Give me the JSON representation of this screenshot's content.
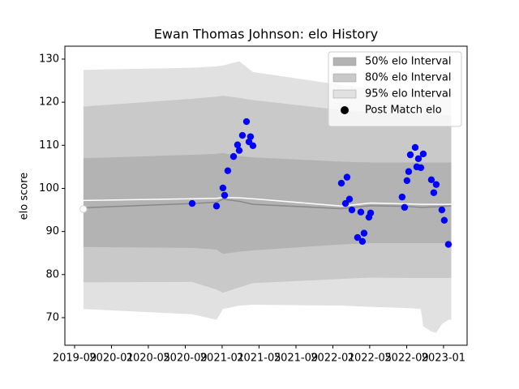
{
  "chart_data": {
    "type": "scatter",
    "title": "Ewan Thomas Johnson: elo History",
    "ylabel": "elo score",
    "xlim": [
      2019.579,
      2023.213
    ],
    "ylim": [
      63.6,
      133
    ],
    "xticks": [
      {
        "value": 2019.667,
        "label": "2019-09"
      },
      {
        "value": 2020.0,
        "label": "2020-01"
      },
      {
        "value": 2020.333,
        "label": "2020-05"
      },
      {
        "value": 2020.667,
        "label": "2020-09"
      },
      {
        "value": 2021.0,
        "label": "2021-01"
      },
      {
        "value": 2021.333,
        "label": "2021-05"
      },
      {
        "value": 2021.667,
        "label": "2021-09"
      },
      {
        "value": 2022.0,
        "label": "2022-01"
      },
      {
        "value": 2022.333,
        "label": "2022-05"
      },
      {
        "value": 2022.667,
        "label": "2022-09"
      },
      {
        "value": 2023.0,
        "label": "2023-01"
      }
    ],
    "yticks": [
      70,
      80,
      90,
      100,
      110,
      120,
      130
    ],
    "legend": "upper right",
    "band_x": [
      2019.747,
      2020.729,
      2020.949,
      2021.007,
      2021.154,
      2021.278,
      2022.077,
      2022.341,
      2022.685,
      2022.795,
      2022.817,
      2022.89,
      2022.934,
      2022.985,
      2023.044,
      2023.07
    ],
    "bands": [
      {
        "name": "95% elo Interval",
        "color": "#e1e1e1",
        "upper": [
          127.5,
          128.0,
          128.3,
          128.5,
          129.5,
          127.0,
          124.0,
          123.2,
          122.5,
          122.3,
          122.3,
          122.2,
          122.2,
          122.1,
          122.0,
          122.0
        ],
        "lower": [
          72.0,
          70.8,
          69.5,
          72.0,
          72.8,
          73.0,
          72.8,
          72.5,
          72.2,
          72.0,
          68.0,
          66.8,
          66.5,
          68.5,
          69.5,
          69.5
        ]
      },
      {
        "name": "80% elo Interval",
        "color": "#c9c9c9",
        "upper": [
          119,
          120.8,
          121.3,
          121.5,
          121,
          120.5,
          118.2,
          117.8,
          117.4,
          117.2,
          117.2,
          117.1,
          117.1,
          117.0,
          117.0,
          117.0
        ],
        "lower": [
          78.2,
          78.3,
          76.5,
          75.8,
          77,
          78,
          79,
          79.3,
          79.2,
          79.2,
          79.2,
          79.2,
          79.2,
          79.2,
          79.2,
          79.2
        ]
      },
      {
        "name": "50% elo Interval",
        "color": "#b3b3b3",
        "upper": [
          107,
          107.8,
          108,
          108.2,
          107.5,
          107.2,
          106.2,
          106,
          106,
          106,
          106,
          106,
          106,
          106,
          106,
          106
        ],
        "lower": [
          86.4,
          86.2,
          85.8,
          84.8,
          85.3,
          85.6,
          87,
          87.3,
          87.3,
          87.3,
          87.3,
          87.3,
          87.3,
          87.3,
          87.3,
          87.3
        ]
      }
    ],
    "lines": [
      {
        "color": "#888888",
        "values": [
          95.5,
          96.5,
          96.8,
          97.5,
          97,
          96.3,
          95.3,
          96.0,
          95.8,
          95.6,
          95.6,
          95.7,
          95.7,
          95.8,
          95.9,
          96.0
        ]
      },
      {
        "color": "#ffffff",
        "values": [
          97.2,
          97.6,
          97.7,
          97.9,
          97.8,
          97.6,
          95.9,
          96.6,
          96.4,
          96.3,
          96.3,
          96.3,
          96.3,
          96.3,
          96.3,
          96.3
        ]
      }
    ],
    "series": [
      {
        "name": "Post Match elo",
        "color": "#0000ff",
        "legend_marker_color": "#000000",
        "first_point_color": "#ffffff",
        "x": [
          2019.747,
          2020.729,
          2020.949,
          2021.007,
          2021.022,
          2021.051,
          2021.103,
          2021.139,
          2021.154,
          2021.183,
          2021.22,
          2021.242,
          2021.256,
          2021.278,
          2022.077,
          2022.128,
          2022.15,
          2022.114,
          2022.172,
          2022.223,
          2022.253,
          2022.267,
          2022.282,
          2022.326,
          2022.341,
          2022.626,
          2022.648,
          2022.67,
          2022.685,
          2022.7,
          2022.744,
          2022.758,
          2022.773,
          2022.795,
          2022.817,
          2022.89,
          2022.912,
          2022.934,
          2022.985,
          2023.007,
          2023.044
        ],
        "values": [
          95.2,
          96.5,
          95.9,
          100.1,
          98.4,
          104.1,
          107.4,
          110.1,
          108.8,
          112.3,
          115.5,
          110.8,
          112.0,
          109.9,
          101.2,
          102.6,
          97.5,
          96.5,
          95.0,
          88.6,
          94.5,
          87.7,
          89.6,
          93.3,
          94.3,
          98.0,
          95.6,
          101.8,
          103.9,
          107.8,
          109.5,
          105.0,
          106.9,
          104.8,
          108.0,
          102.0,
          99.0,
          100.9,
          95.0,
          92.6,
          87.0
        ]
      }
    ]
  }
}
